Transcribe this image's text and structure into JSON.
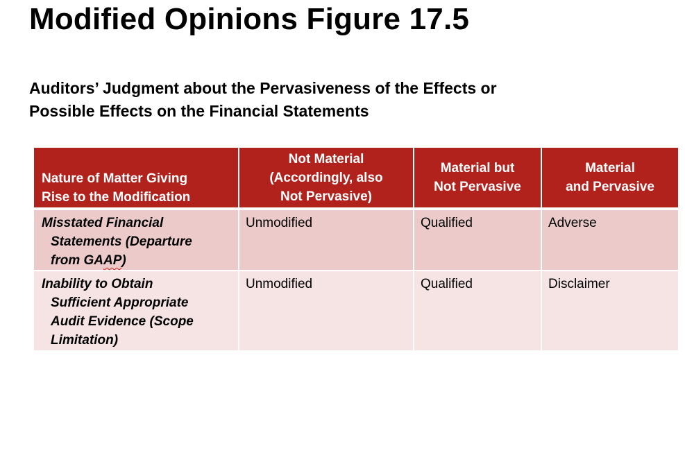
{
  "slide": {
    "title": "Modified Opinions Figure 17.5",
    "subtitle_line1": "Auditors’ Judgment about the Pervasiveness of the Effects or",
    "subtitle_line2": "Possible Effects on the Financial Statements"
  },
  "table": {
    "header": {
      "col0": [
        "Nature of Matter Giving",
        "Rise to the Modification"
      ],
      "col1": [
        "Not Material",
        "(Accordingly, also",
        "Not Pervasive)"
      ],
      "col2": [
        "Material but",
        "Not Pervasive"
      ],
      "col3": [
        "Material",
        "and Pervasive"
      ]
    },
    "rows": [
      {
        "matter_lines": [
          "Misstated Financial",
          "Statements (Departure",
          "from GA",
          "AP",
          ")"
        ],
        "not_material": "Unmodified",
        "material_not_pervasive": "Qualified",
        "material_pervasive": "Adverse"
      },
      {
        "matter_lines": [
          "Inability to Obtain",
          "Sufficient Appropriate",
          "Audit Evidence (Scope",
          "Limitation)"
        ],
        "not_material": "Unmodified",
        "material_not_pervasive": "Qualified",
        "material_pervasive": "Disclaimer"
      }
    ]
  }
}
